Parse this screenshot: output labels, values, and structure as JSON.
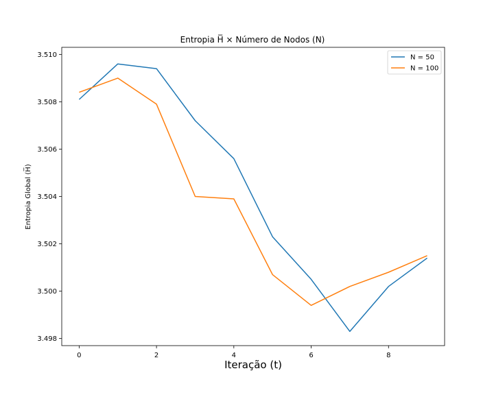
{
  "chart_data": {
    "type": "line",
    "title": "Entropia H̅ × Número de Nodos (N)",
    "xlabel": "Iteração (t)",
    "ylabel": "Entropia Global (H̅)",
    "x": [
      0,
      1,
      2,
      3,
      4,
      5,
      6,
      7,
      8,
      9
    ],
    "xlim": [
      -0.45,
      9.45
    ],
    "ylim": [
      3.4977,
      3.5103
    ],
    "xticks": [
      0,
      2,
      4,
      6,
      8
    ],
    "xtick_labels": [
      "0",
      "2",
      "4",
      "6",
      "8"
    ],
    "yticks": [
      3.498,
      3.5,
      3.502,
      3.504,
      3.506,
      3.508,
      3.51
    ],
    "ytick_labels": [
      "3.498",
      "3.500",
      "3.502",
      "3.504",
      "3.506",
      "3.508",
      "3.510"
    ],
    "grid": false,
    "legend_position": "top-right",
    "series": [
      {
        "name": "N = 50",
        "color": "#1f77b4",
        "values": [
          3.5081,
          3.5096,
          3.5094,
          3.5072,
          3.5056,
          3.5023,
          3.5005,
          3.4983,
          3.5002,
          3.5014
        ]
      },
      {
        "name": "N = 100",
        "color": "#ff7f0e",
        "values": [
          3.5084,
          3.509,
          3.5079,
          3.504,
          3.5039,
          3.5007,
          3.4994,
          3.5002,
          3.5008,
          3.5015
        ]
      }
    ]
  }
}
